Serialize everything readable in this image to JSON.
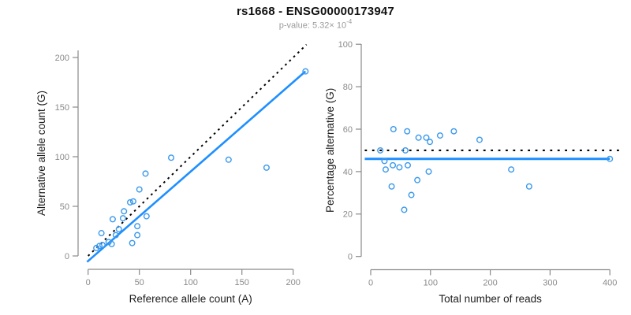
{
  "header": {
    "title": "rs1668 - ENSG00000173947",
    "pvalue_label": "p-value: 5.32× 10",
    "pvalue_exponent": "-4"
  },
  "colors": {
    "line_blue": "#1E8FFF",
    "point_blue": "#3B99EC",
    "dotted_black": "#000000",
    "axis_gray": "#8a8a8a",
    "tick_text_gray": "#8a8a8a",
    "axis_title_dark": "#1c1c1c",
    "subtitle_gray": "#9a9a9a"
  },
  "chart_data": [
    {
      "type": "scatter",
      "panel": "left",
      "xlabel": "Reference allele count (A)",
      "ylabel": "Alternative allele count (G)",
      "xlim": [
        0,
        215
      ],
      "ylim": [
        0,
        210
      ],
      "xticks": [
        0,
        50,
        100,
        150,
        200
      ],
      "yticks": [
        0,
        50,
        100,
        150,
        200
      ],
      "grid": false,
      "legend": "none",
      "points": [
        [
          8,
          8
        ],
        [
          11,
          10
        ],
        [
          14,
          11
        ],
        [
          13,
          23
        ],
        [
          20,
          14
        ],
        [
          23,
          12
        ],
        [
          24,
          37
        ],
        [
          27,
          21
        ],
        [
          30,
          27
        ],
        [
          34,
          38
        ],
        [
          35,
          45
        ],
        [
          41,
          54
        ],
        [
          44,
          55
        ],
        [
          43,
          13
        ],
        [
          48,
          21
        ],
        [
          48,
          30
        ],
        [
          50,
          67
        ],
        [
          56,
          83
        ],
        [
          57,
          40
        ],
        [
          81,
          99
        ],
        [
          137,
          97
        ],
        [
          174,
          89
        ],
        [
          212,
          186
        ]
      ],
      "lines": [
        {
          "name": "identity-line",
          "style": "dotted",
          "color": "#000000",
          "x1": 0,
          "y1": 0,
          "x2": 213,
          "y2": 213
        },
        {
          "name": "regression-line",
          "style": "solid",
          "color": "#1E8FFF",
          "x1": -1,
          "y1": -6,
          "x2": 212,
          "y2": 186
        }
      ]
    },
    {
      "type": "scatter",
      "panel": "right",
      "xlabel": "Total number of reads",
      "ylabel": "Percentage alternative (G)",
      "xlim": [
        0,
        418
      ],
      "ylim": [
        0,
        100
      ],
      "xticks": [
        0,
        100,
        200,
        300,
        400
      ],
      "yticks": [
        0,
        20,
        40,
        60,
        80,
        100
      ],
      "grid": false,
      "legend": "none",
      "points": [
        [
          16,
          50
        ],
        [
          23,
          45
        ],
        [
          25,
          41
        ],
        [
          35,
          33
        ],
        [
          37,
          43
        ],
        [
          38,
          60
        ],
        [
          48,
          42
        ],
        [
          56,
          22
        ],
        [
          58,
          50
        ],
        [
          61,
          59
        ],
        [
          62,
          43
        ],
        [
          68,
          29
        ],
        [
          78,
          36
        ],
        [
          80,
          56
        ],
        [
          93,
          56
        ],
        [
          97,
          40
        ],
        [
          99,
          54
        ],
        [
          116,
          57
        ],
        [
          139,
          59
        ],
        [
          182,
          55
        ],
        [
          235,
          41
        ],
        [
          265,
          33
        ],
        [
          400,
          46
        ]
      ],
      "lines": [
        {
          "name": "null-line",
          "style": "dotted",
          "color": "#000000",
          "x1": -10,
          "y1": 50,
          "x2": 418,
          "y2": 50
        },
        {
          "name": "fit-line",
          "style": "solid",
          "color": "#1E8FFF",
          "x1": -10,
          "y1": 46,
          "x2": 400,
          "y2": 46
        }
      ]
    }
  ]
}
